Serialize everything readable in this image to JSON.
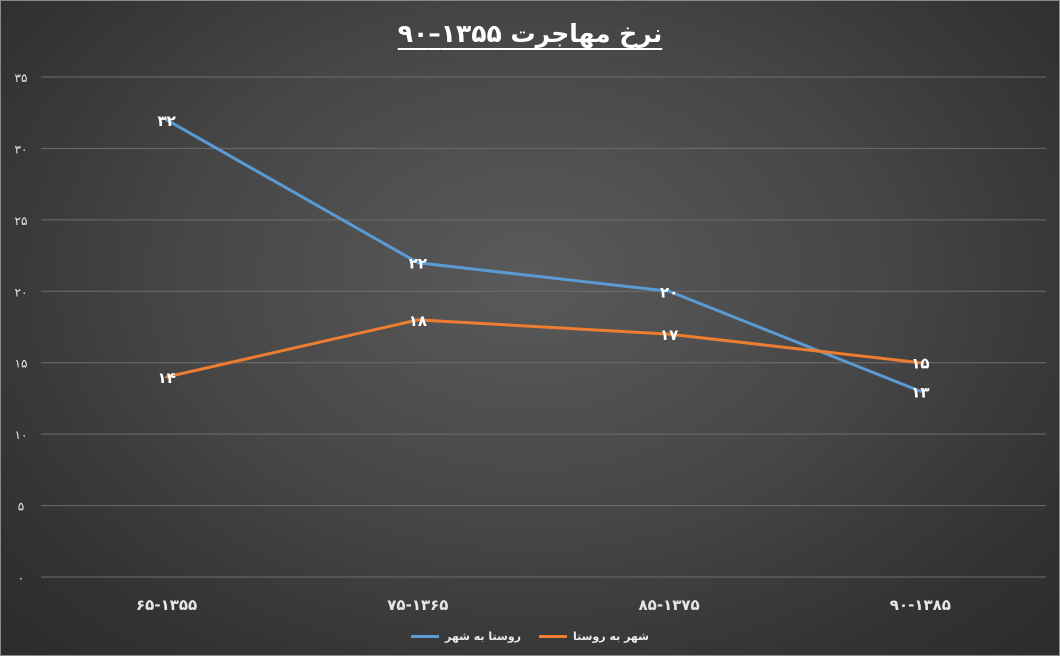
{
  "chart_data": {
    "type": "line",
    "title": "نرخ مهاجرت ۱۳۵۵–۹۰",
    "categories": [
      "۶۵-۱۳۵۵",
      "۷۵-۱۳۶۵",
      "۸۵-۱۳۷۵",
      "۹۰-۱۳۸۵"
    ],
    "y_ticks": [
      "۰",
      "۵",
      "۱۰",
      "۱۵",
      "۲۰",
      "۲۵",
      "۳۰",
      "۳۵"
    ],
    "ylim": [
      0,
      35
    ],
    "grid": true,
    "legend_position": "bottom",
    "series": [
      {
        "name": "روستا به شهر",
        "color": "#5b9bd5",
        "values": [
          32,
          22,
          20,
          13
        ],
        "labels": [
          "۳۲",
          "۲۲",
          "۲۰",
          "۱۳"
        ]
      },
      {
        "name": "شهر به روستا",
        "color": "#ed7d31",
        "values": [
          14,
          18,
          17,
          15
        ],
        "labels": [
          "۱۴",
          "۱۸",
          "۱۷",
          "۱۵"
        ]
      }
    ]
  }
}
